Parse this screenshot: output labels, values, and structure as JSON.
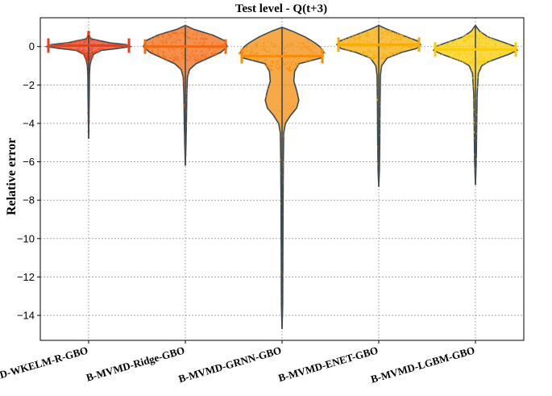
{
  "chart_data": {
    "type": "violin",
    "title": "Test level - Q(t+3)",
    "ylabel": "Relative error",
    "xlabel": "",
    "ylim": [
      -15.3,
      1.5
    ],
    "yticks": [
      0,
      -2,
      -4,
      -6,
      -8,
      -10,
      -12,
      -14
    ],
    "grid": true,
    "categories": [
      "B-MVMD-WKELM-R-GBO",
      "B-MVMD-Ridge-GBO",
      "B-MVMD-GRNN-GBO",
      "B-MVMD-ENET-GBO",
      "B-MVMD-LGBM-GBO"
    ],
    "series": [
      {
        "color": "#e8401a",
        "min": -4.8,
        "max": 0.6,
        "median": 0.05,
        "density": [
          [
            0.6,
            0.0
          ],
          [
            0.4,
            0.06
          ],
          [
            0.2,
            0.5
          ],
          [
            0.1,
            0.9
          ],
          [
            0.0,
            1.0
          ],
          [
            -0.1,
            0.7
          ],
          [
            -0.2,
            0.3
          ],
          [
            -0.4,
            0.12
          ],
          [
            -0.7,
            0.06
          ],
          [
            -1.0,
            0.03
          ],
          [
            -1.5,
            0.02
          ],
          [
            -2.5,
            0.015
          ],
          [
            -3.5,
            0.01
          ],
          [
            -4.8,
            0.0
          ]
        ]
      },
      {
        "color": "#f26a10",
        "min": -6.2,
        "max": 1.1,
        "median": 0.0,
        "density": [
          [
            1.1,
            0.0
          ],
          [
            0.9,
            0.2
          ],
          [
            0.6,
            0.65
          ],
          [
            0.3,
            0.95
          ],
          [
            0.0,
            1.0
          ],
          [
            -0.3,
            0.85
          ],
          [
            -0.6,
            0.55
          ],
          [
            -0.9,
            0.25
          ],
          [
            -1.2,
            0.1
          ],
          [
            -1.6,
            0.05
          ],
          [
            -2.5,
            0.035
          ],
          [
            -4.0,
            0.025
          ],
          [
            -5.0,
            0.015
          ],
          [
            -6.2,
            0.0
          ]
        ]
      },
      {
        "color": "#f58c0a",
        "min": -14.7,
        "max": 1.0,
        "median": -0.5,
        "density": [
          [
            1.0,
            0.0
          ],
          [
            0.8,
            0.25
          ],
          [
            0.5,
            0.55
          ],
          [
            0.2,
            0.78
          ],
          [
            0.0,
            0.9
          ],
          [
            -0.3,
            1.0
          ],
          [
            -0.6,
            0.92
          ],
          [
            -0.9,
            0.4
          ],
          [
            -1.3,
            0.3
          ],
          [
            -1.8,
            0.28
          ],
          [
            -2.3,
            0.35
          ],
          [
            -2.8,
            0.4
          ],
          [
            -3.2,
            0.35
          ],
          [
            -3.6,
            0.2
          ],
          [
            -4.0,
            0.08
          ],
          [
            -4.5,
            0.04
          ],
          [
            -6.0,
            0.03
          ],
          [
            -8.0,
            0.025
          ],
          [
            -11.0,
            0.02
          ],
          [
            -13.5,
            0.015
          ],
          [
            -14.7,
            0.0
          ]
        ]
      },
      {
        "color": "#f7ac06",
        "min": -7.3,
        "max": 1.1,
        "median": 0.1,
        "density": [
          [
            1.1,
            0.0
          ],
          [
            0.9,
            0.2
          ],
          [
            0.6,
            0.55
          ],
          [
            0.3,
            0.92
          ],
          [
            0.1,
            1.0
          ],
          [
            -0.1,
            0.9
          ],
          [
            -0.3,
            0.55
          ],
          [
            -0.6,
            0.2
          ],
          [
            -1.0,
            0.07
          ],
          [
            -1.5,
            0.04
          ],
          [
            -3.0,
            0.03
          ],
          [
            -5.0,
            0.025
          ],
          [
            -6.5,
            0.015
          ],
          [
            -7.3,
            0.0
          ]
        ]
      },
      {
        "color": "#f8cc06",
        "min": -7.2,
        "max": 1.1,
        "median": -0.15,
        "density": [
          [
            1.1,
            0.0
          ],
          [
            0.8,
            0.1
          ],
          [
            0.5,
            0.3
          ],
          [
            0.2,
            0.7
          ],
          [
            0.0,
            0.95
          ],
          [
            -0.2,
            1.0
          ],
          [
            -0.4,
            0.8
          ],
          [
            -0.6,
            0.55
          ],
          [
            -0.8,
            0.3
          ],
          [
            -1.0,
            0.15
          ],
          [
            -1.4,
            0.07
          ],
          [
            -2.5,
            0.04
          ],
          [
            -4.0,
            0.03
          ],
          [
            -6.0,
            0.02
          ],
          [
            -7.2,
            0.0
          ]
        ]
      }
    ]
  }
}
